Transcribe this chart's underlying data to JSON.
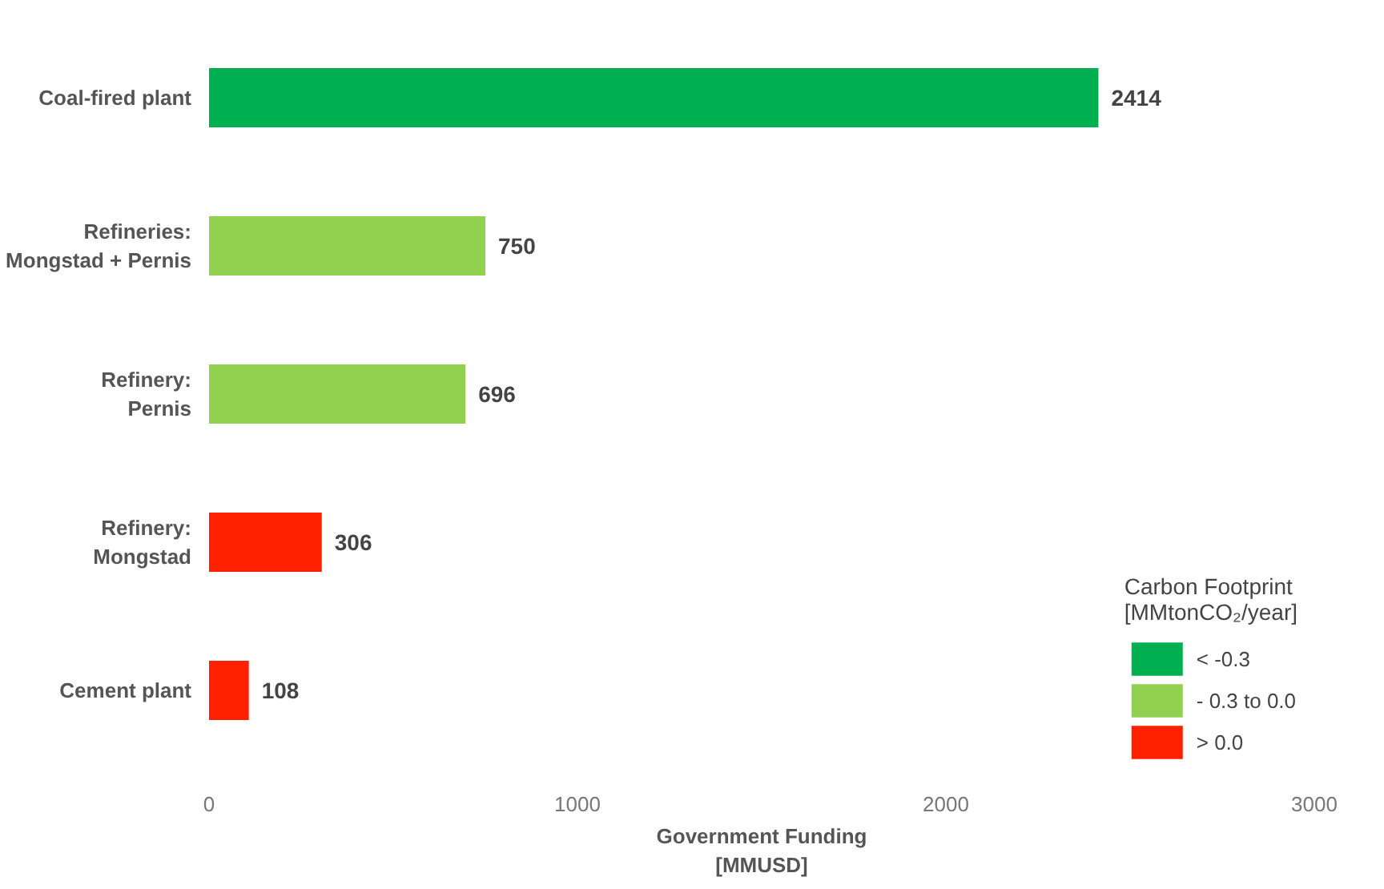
{
  "chart_data": {
    "type": "bar",
    "orientation": "horizontal",
    "categories": [
      "Coal-fired plant",
      "Refineries:\nMongstad + Pernis",
      "Refinery:\nPernis",
      "Refinery:\nMongstad",
      "Cement plant"
    ],
    "series": [
      {
        "name": "< -0.3",
        "color": "#00b050",
        "values": [
          2414,
          null,
          null,
          null,
          null
        ]
      },
      {
        "name": "- 0.3 to 0.0",
        "color": "#92d050",
        "values": [
          null,
          750,
          696,
          null,
          null
        ]
      },
      {
        "name": "> 0.0",
        "color": "#ff2000",
        "values": [
          null,
          null,
          null,
          306,
          108
        ]
      }
    ],
    "xlim": [
      0,
      3000
    ],
    "xticks": [
      0,
      1000,
      2000,
      3000
    ],
    "xlabel": "Government Funding\n[MMUSD]",
    "legend_title": "Carbon Footprint\n[MMtonCO₂/year]",
    "legend": "bottom right",
    "grid": false,
    "data_labels": true
  }
}
